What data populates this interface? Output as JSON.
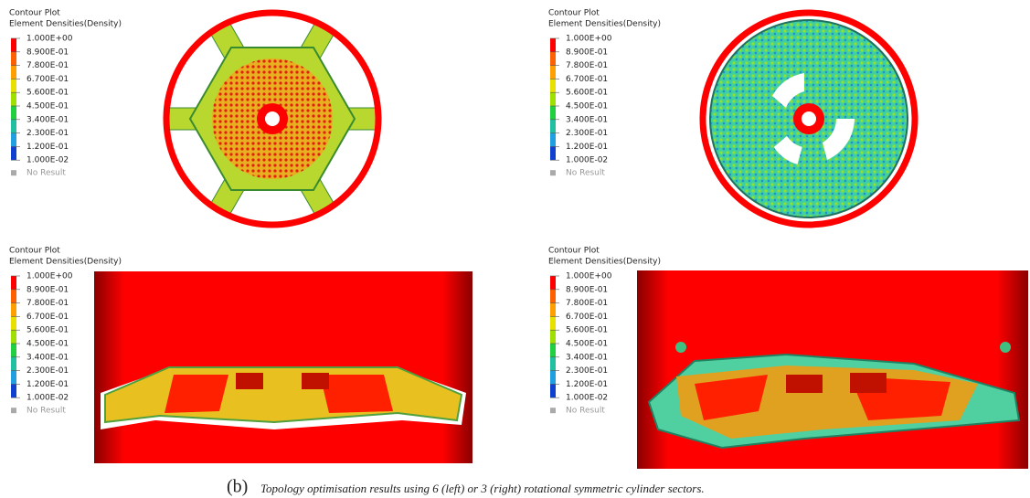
{
  "panels": [
    {
      "title": "Contour Plot",
      "subtitle": "Element Densities(Density)",
      "legend": [
        "1.000E+00",
        "8.900E-01",
        "7.800E-01",
        "6.700E-01",
        "5.600E-01",
        "4.500E-01",
        "3.400E-01",
        "2.300E-01",
        "1.200E-01",
        "1.000E-02"
      ],
      "no_result": "No Result"
    },
    {
      "title": "Contour Plot",
      "subtitle": "Element Densities(Density)",
      "legend": [
        "1.000E+00",
        "8.900E-01",
        "7.800E-01",
        "6.700E-01",
        "5.600E-01",
        "4.500E-01",
        "3.400E-01",
        "2.300E-01",
        "1.200E-01",
        "1.000E-02"
      ],
      "no_result": "No Result"
    },
    {
      "title": "Contour Plot",
      "subtitle": "Element Densities(Density)",
      "legend": [
        "1.000E+00",
        "8.900E-01",
        "7.800E-01",
        "6.700E-01",
        "5.600E-01",
        "4.500E-01",
        "3.400E-01",
        "2.300E-01",
        "1.200E-01",
        "1.000E-02"
      ],
      "no_result": "No Result"
    },
    {
      "title": "Contour Plot",
      "subtitle": "Element Densities(Density)",
      "legend": [
        "1.000E+00",
        "8.900E-01",
        "7.800E-01",
        "6.700E-01",
        "5.600E-01",
        "4.500E-01",
        "3.400E-01",
        "2.300E-01",
        "1.200E-01",
        "1.000E-02"
      ],
      "no_result": "No Result"
    }
  ],
  "caption": {
    "label": "(b)",
    "text": "Topology optimisation results using 6 (left) or 3 (right) rotational symmetric cylinder sectors."
  }
}
